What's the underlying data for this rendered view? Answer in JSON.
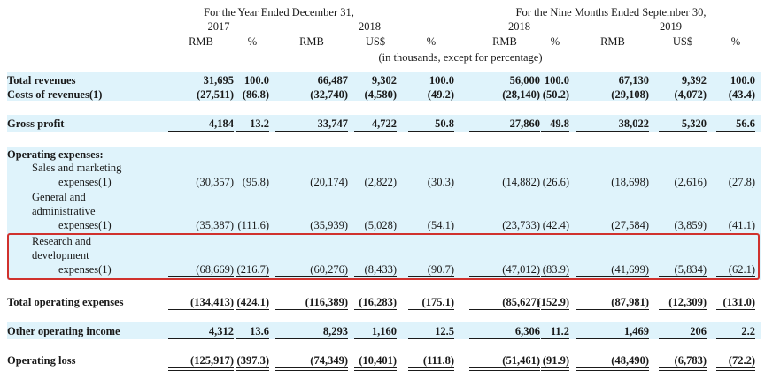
{
  "header": {
    "group_left": "For the Year Ended December 31,",
    "group_right": "For the Nine Months Ended September 30,",
    "years": [
      "2017",
      "2018",
      "2018",
      "2019"
    ],
    "units": [
      "RMB",
      "%",
      "RMB",
      "US$",
      "%",
      "RMB",
      "%",
      "RMB",
      "US$",
      "%"
    ],
    "note": "(in thousands, except for percentage)"
  },
  "rows": [
    {
      "lines": [
        "Total revenues"
      ],
      "bold": true,
      "values": [
        "31,695",
        "100.0",
        "66,487",
        "9,302",
        "100.0",
        "56,000",
        "100.0",
        "67,130",
        "9,392",
        "100.0"
      ]
    },
    {
      "lines": [
        "Costs of revenues(1)"
      ],
      "bold": true,
      "values": [
        "(27,511)",
        "(86.8)",
        "(32,740)",
        "(4,580)",
        "(49.2)",
        "(28,140)",
        "(50.2)",
        "(29,108)",
        "(4,072)",
        "(43.4)"
      ]
    },
    {
      "lines": [
        "Gross profit"
      ],
      "bold": true,
      "values": [
        "4,184",
        "13.2",
        "33,747",
        "4,722",
        "50.8",
        "27,860",
        "49.8",
        "38,022",
        "5,320",
        "56.6"
      ]
    },
    {
      "lines": [
        "Operating expenses:"
      ],
      "bold": true,
      "values": []
    },
    {
      "lines": [
        "Sales and marketing",
        "expenses(1)"
      ],
      "values": [
        "(30,357)",
        "(95.8)",
        "(20,174)",
        "(2,822)",
        "(30.3)",
        "(14,882)",
        "(26.6)",
        "(18,698)",
        "(2,616)",
        "(27.8)"
      ]
    },
    {
      "lines": [
        "General and",
        "administrative",
        "expenses(1)"
      ],
      "values": [
        "(35,387)",
        "(111.6)",
        "(35,939)",
        "(5,028)",
        "(54.1)",
        "(23,733)",
        "(42.4)",
        "(27,584)",
        "(3,859)",
        "(41.1)"
      ]
    },
    {
      "lines": [
        "Research and",
        "development",
        "expenses(1)"
      ],
      "values": [
        "(68,669)",
        "(216.7)",
        "(60,276)",
        "(8,433)",
        "(90.7)",
        "(47,012)",
        "(83.9)",
        "(41,699)",
        "(5,834)",
        "(62.1)"
      ]
    },
    {
      "lines": [
        "Total operating expenses"
      ],
      "bold": true,
      "values": [
        "(134,413)",
        "(424.1)",
        "(116,389)",
        "(16,283)",
        "(175.1)",
        "(85,627)",
        "(152.9)",
        "(87,981)",
        "(12,309)",
        "(131.0)"
      ]
    },
    {
      "lines": [
        "Other operating income"
      ],
      "bold": true,
      "values": [
        "4,312",
        "13.6",
        "8,293",
        "1,160",
        "12.5",
        "6,306",
        "11.2",
        "1,469",
        "206",
        "2.2"
      ]
    },
    {
      "lines": [
        "Operating loss"
      ],
      "bold": true,
      "values": [
        "(125,917)",
        "(397.3)",
        "(74,349)",
        "(10,401)",
        "(111.8)",
        "(51,461)",
        "(91.9)",
        "(48,490)",
        "(6,783)",
        "(72.2)"
      ]
    }
  ]
}
